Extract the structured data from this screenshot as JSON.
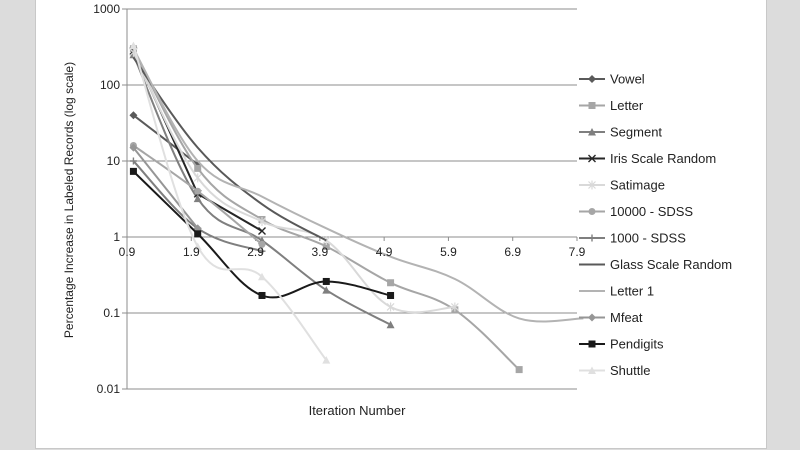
{
  "chart_data": {
    "type": "line",
    "title": "",
    "xlabel": "Iteration Number",
    "ylabel": "Percentage Increase in Labeled Records (log scale)",
    "y_scale": "log",
    "ylim": [
      0.01,
      1000
    ],
    "xlim": [
      0.9,
      7.9
    ],
    "x_ticks": [
      "0.9",
      "1.9",
      "2.9",
      "3.9",
      "4.9",
      "5.9",
      "6.9",
      "7.9"
    ],
    "y_ticks": [
      "1000",
      "100",
      "10",
      "1",
      "0.1",
      "0.01"
    ],
    "grid": "horizontal",
    "legend_position": "right",
    "series": [
      {
        "name": "Vowel",
        "color": "#5a5a5a",
        "marker": "diamond",
        "smooth": true,
        "x": [
          1,
          2
        ],
        "y": [
          40,
          9
        ]
      },
      {
        "name": "Letter",
        "color": "#a6a6a6",
        "marker": "square",
        "smooth": true,
        "x": [
          1,
          2,
          3,
          4,
          5,
          6,
          7
        ],
        "y": [
          300,
          8,
          1.7,
          0.75,
          0.25,
          0.11,
          0.018
        ]
      },
      {
        "name": "Segment",
        "color": "#7f7f7f",
        "marker": "triangle",
        "smooth": true,
        "x": [
          1,
          2,
          3,
          4,
          5
        ],
        "y": [
          250,
          3.2,
          0.9,
          0.2,
          0.07
        ]
      },
      {
        "name": "Iris Scale Random",
        "color": "#262626",
        "marker": "x",
        "smooth": false,
        "x": [
          1,
          2,
          3
        ],
        "y": [
          280,
          3.7,
          1.2
        ]
      },
      {
        "name": "Satimage",
        "color": "#d9d9d9",
        "marker": "star",
        "smooth": true,
        "x": [
          1,
          2,
          3,
          4,
          5,
          6
        ],
        "y": [
          270,
          6,
          1.6,
          0.9,
          0.12,
          0.12
        ]
      },
      {
        "name": "10000 - SDSS",
        "color": "#a6a6a6",
        "marker": "circle",
        "smooth": true,
        "x": [
          1,
          2,
          3
        ],
        "y": [
          16,
          4,
          0.8
        ]
      },
      {
        "name": "1000 - SDSS",
        "color": "#7f7f7f",
        "marker": "plus",
        "smooth": true,
        "x": [
          1,
          2,
          3
        ],
        "y": [
          10,
          1.3,
          0.65
        ]
      },
      {
        "name": "Glass Scale Random",
        "color": "#595959",
        "marker": "none",
        "smooth": true,
        "x": [
          1,
          2,
          3,
          4
        ],
        "y": [
          230,
          15,
          2.7,
          0.9
        ]
      },
      {
        "name": "Letter 1",
        "color": "#b3b3b3",
        "marker": "none",
        "smooth": true,
        "x": [
          1,
          2,
          3,
          4,
          5,
          6,
          7,
          8
        ],
        "y": [
          300,
          10,
          3.4,
          1.3,
          0.55,
          0.28,
          0.085,
          0.085
        ]
      },
      {
        "name": "Mfeat",
        "color": "#969696",
        "marker": "diamond",
        "smooth": true,
        "x": [
          1,
          2
        ],
        "y": [
          15,
          1.3
        ]
      },
      {
        "name": "Pendigits",
        "color": "#1a1a1a",
        "marker": "square",
        "smooth": true,
        "x": [
          1,
          2,
          3,
          4,
          5
        ],
        "y": [
          7.3,
          1.1,
          0.17,
          0.26,
          0.17
        ]
      },
      {
        "name": "Shuttle",
        "color": "#e0e0e0",
        "marker": "triangle",
        "smooth": true,
        "x": [
          1,
          2,
          3,
          4
        ],
        "y": [
          330,
          0.75,
          0.3,
          0.024
        ]
      }
    ]
  }
}
